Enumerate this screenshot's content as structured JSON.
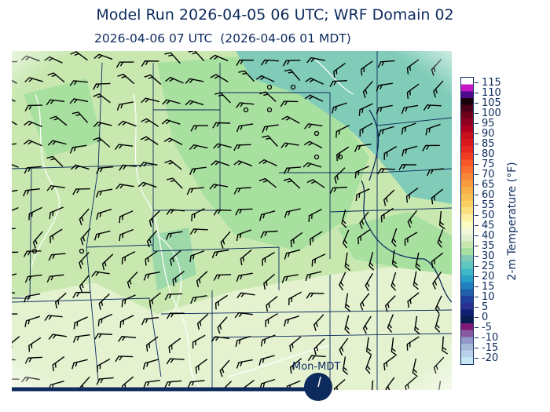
{
  "header": {
    "title": "Model Run 2026-04-05 06 UTC; WRF Domain 02",
    "subtitle": "2026-04-06 07 UTC  (2026-04-06 01 MDT)"
  },
  "colorbar": {
    "label": "2-m Temperature (°F)",
    "ticks": [
      "115",
      "110",
      "105",
      "100",
      "95",
      "90",
      "85",
      "80",
      "75",
      "70",
      "65",
      "60",
      "55",
      "50",
      "45",
      "40",
      "35",
      "30",
      "25",
      "20",
      "15",
      "10",
      "5",
      "0",
      "-5",
      "-10",
      "-15",
      "-20"
    ],
    "colors_top_to_bottom": [
      "#ffffff",
      "#c418c8",
      "#4c0a8c",
      "#1a0008",
      "#4a0018",
      "#70001c",
      "#900020",
      "#b00020",
      "#c8101c",
      "#d8181c",
      "#e82820",
      "#f03c20",
      "#f85828",
      "#f87030",
      "#f88838",
      "#f89c40",
      "#f8b048",
      "#f8c050",
      "#fcd060",
      "#fce080",
      "#fcf0a0",
      "#fcfcc0",
      "#f0f8d8",
      "#e0f0d0",
      "#c8e8b0",
      "#a8e0a0",
      "#80ccb8",
      "#60c8c0",
      "#40b8c8",
      "#28a0c8",
      "#2080c0",
      "#2060a8",
      "#2040a0",
      "#283090",
      "#102070",
      "#081c50",
      "#801878",
      "#8858a0",
      "#9098c8",
      "#a8b8d8",
      "#b8d0e8",
      "#c8e8f8"
    ]
  },
  "timeline": {
    "day_label": "Mon-MDT",
    "progress": 0.7,
    "accent": "#0c2a5c"
  },
  "map": {
    "field_colors": {
      "cold": "#80ccb8",
      "cool": "#a8e0a0",
      "mild": "#c8e8b0",
      "warm": "#e8f4d4"
    },
    "border_color": "#0c2a5c",
    "contour_color": "#ffffff"
  }
}
